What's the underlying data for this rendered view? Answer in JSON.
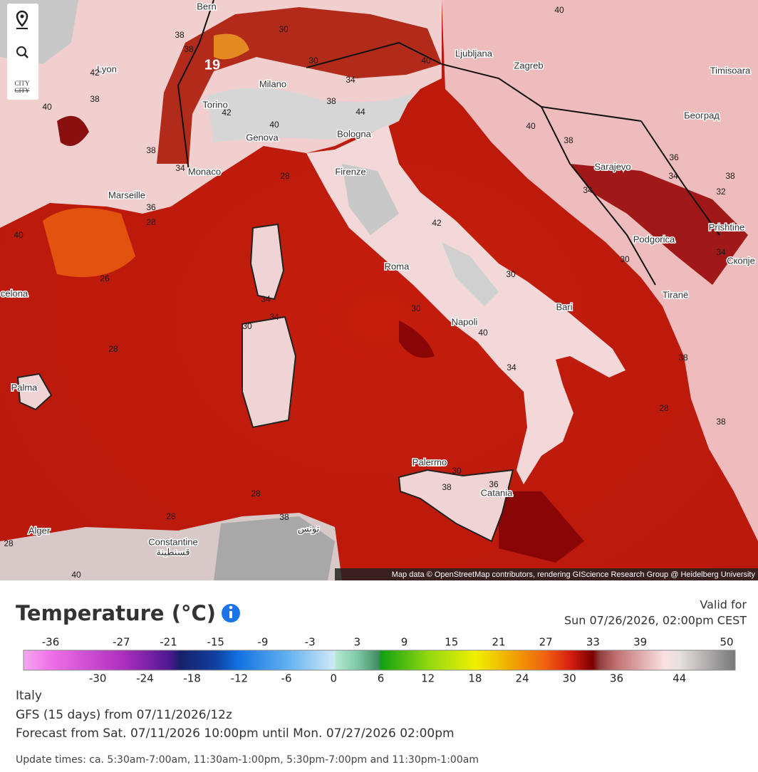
{
  "map": {
    "toolbar": [
      "CITY",
      "CITY"
    ],
    "attribution": "Map data © OpenStreetMap contributors, rendering GIScience Research Group @ Heidelberg University",
    "cities": [
      "Bern",
      "Lyon",
      "Torino",
      "Milano",
      "Ljubljana",
      "Zagreb",
      "Timisoara",
      "Београд",
      "Genova",
      "Bologna",
      "Monaco",
      "Marseille",
      "Firenze",
      "Sarajevo",
      "Podgorica",
      "Prishtine",
      "Скопје",
      "Roma",
      "Tiranë",
      "Bari",
      "Napoli",
      "Palma",
      "Palermo",
      "Catania",
      "Alger",
      "Constantine",
      "قسنطينة",
      "تونس",
      "celona"
    ],
    "contour_labels": [
      40,
      38,
      38,
      19,
      30,
      30,
      34,
      38,
      44,
      40,
      42,
      38,
      40,
      42,
      40,
      40,
      38,
      38,
      34,
      28,
      36,
      34,
      38,
      32,
      34,
      36,
      28,
      42,
      40,
      26,
      30,
      34,
      30,
      34,
      34,
      30,
      30,
      40,
      28,
      34,
      38,
      28,
      38,
      30,
      38,
      36,
      28,
      28,
      38,
      28,
      40
    ]
  },
  "legend": {
    "title": "Temperature (°C)",
    "valid_label": "Valid for",
    "valid_time": "Sun 07/26/2026, 02:00pm CEST",
    "top_ticks": [
      -36,
      -27,
      -21,
      -15,
      -9,
      -3,
      3,
      9,
      15,
      21,
      27,
      33,
      39,
      50
    ],
    "bottom_ticks": [
      -30,
      -24,
      -18,
      -12,
      -6,
      0,
      6,
      12,
      18,
      24,
      30,
      36,
      44
    ]
  },
  "info": {
    "region": "Italy",
    "model": "GFS (15 days) from 07/11/2026/12z",
    "range": "Forecast from Sat. 07/11/2026 10:00pm until Mon. 07/27/2026 02:00pm",
    "update_times": "Update times: ca. 5:30am-7:00am, 11:30am-1:00pm, 5:30pm-7:00pm and 11:30pm-1:00am"
  }
}
